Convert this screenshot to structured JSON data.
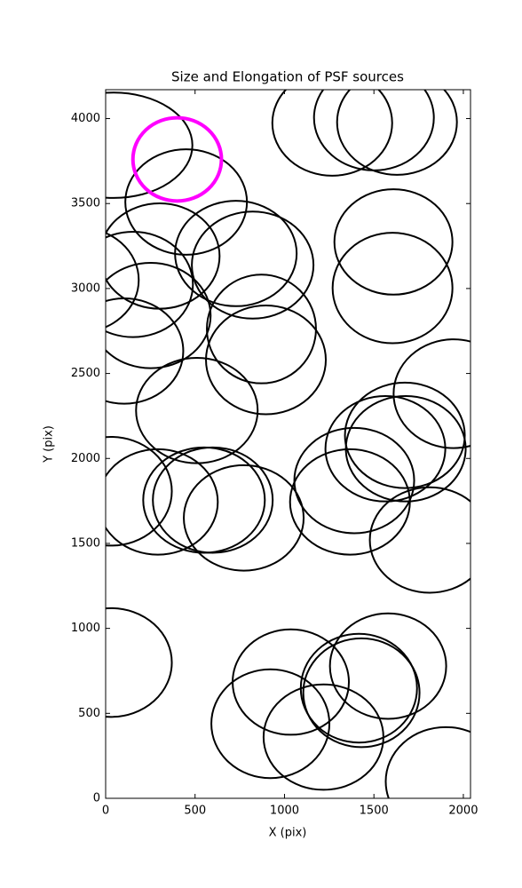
{
  "chart_data": {
    "type": "ellipse",
    "title": "Size and Elongation of PSF sources",
    "xlabel": "X (pix)",
    "ylabel": "Y (pix)",
    "xlim": [
      0,
      2040
    ],
    "ylim": [
      0,
      4170
    ],
    "xticks": [
      0,
      500,
      1000,
      1500,
      2000
    ],
    "yticks": [
      0,
      500,
      1000,
      1500,
      2000,
      2500,
      3000,
      3500,
      4000
    ],
    "series": [
      {
        "color": "#000000",
        "x": [
          45,
          450,
          1267,
          1500,
          1629,
          1609,
          1604,
          1945,
          728,
          822,
          302,
          153,
          252,
          104,
          -150,
          871,
          896,
          510,
          30,
          292,
          599,
          550,
          772,
          1366,
          1390,
          1564,
          1678,
          1673,
          1812,
          30,
          1035,
          921,
          1218,
          1416,
          1430,
          1579,
          1901
        ],
        "y": [
          3843,
          3509,
          3974,
          4005,
          3979,
          3274,
          3003,
          2381,
          3206,
          3138,
          3191,
          3024,
          2841,
          2632,
          3050,
          2762,
          2580,
          2282,
          1807,
          1744,
          1755,
          1755,
          1650,
          1744,
          1870,
          2057,
          2057,
          2136,
          1520,
          799,
          684,
          439,
          360,
          648,
          621,
          778,
          99
        ],
        "width": [
          880,
          680,
          670,
          670,
          670,
          660,
          670,
          670,
          680,
          680,
          670,
          670,
          670,
          660,
          670,
          610,
          670,
          680,
          680,
          670,
          670,
          680,
          670,
          670,
          670,
          670,
          670,
          670,
          670,
          680,
          650,
          660,
          670,
          650,
          650,
          650,
          670
        ],
        "height": [
          620,
          620,
          620,
          620,
          620,
          620,
          650,
          640,
          620,
          630,
          620,
          620,
          620,
          620,
          620,
          640,
          640,
          620,
          640,
          620,
          620,
          620,
          620,
          620,
          620,
          620,
          620,
          620,
          620,
          640,
          620,
          640,
          620,
          640,
          640,
          620,
          640
        ]
      },
      {
        "color": "#ff00ff",
        "x": [
          400
        ],
        "y": [
          3760
        ],
        "width": [
          495
        ],
        "height": [
          490
        ]
      }
    ]
  }
}
